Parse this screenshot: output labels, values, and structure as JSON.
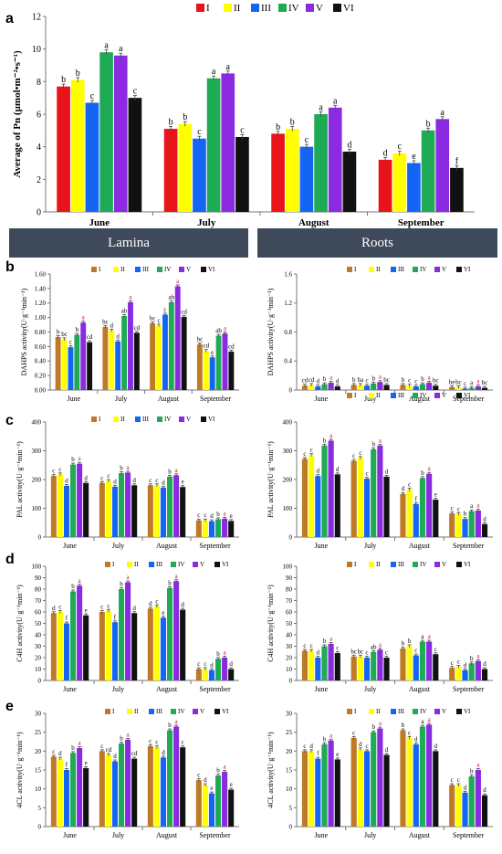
{
  "panel_letters": [
    "a",
    "b",
    "c",
    "d",
    "e"
  ],
  "banner": {
    "left_label": "Lamina",
    "right_label": "Roots"
  },
  "chart_data": [
    {
      "id": "pn",
      "type": "bar",
      "ylabel": "Average of Pn (µmol•m⁻²•s⁻¹)",
      "ylim": [
        0,
        12
      ],
      "yticks": [
        0,
        2,
        4,
        6,
        8,
        10,
        12
      ],
      "categories": [
        "June",
        "July",
        "August",
        "September"
      ],
      "legend": [
        "I",
        "II",
        "III",
        "IV",
        "V",
        "VI"
      ],
      "colors": [
        "#e8141c",
        "#ffff00",
        "#1565f5",
        "#1faa55",
        "#8a2be2",
        "#111111"
      ],
      "series": [
        {
          "name": "I",
          "values": [
            7.7,
            5.1,
            4.8,
            3.2
          ]
        },
        {
          "name": "II",
          "values": [
            8.1,
            5.4,
            5.1,
            3.6
          ]
        },
        {
          "name": "III",
          "values": [
            6.7,
            4.5,
            4.0,
            3.0
          ]
        },
        {
          "name": "IV",
          "values": [
            9.8,
            8.2,
            6.0,
            5.0
          ]
        },
        {
          "name": "V",
          "values": [
            9.6,
            8.5,
            6.4,
            5.7
          ]
        },
        {
          "name": "VI",
          "values": [
            7.0,
            4.6,
            3.7,
            2.7
          ]
        }
      ],
      "letters": [
        [
          "b",
          "b",
          "c",
          "a",
          "a",
          "c"
        ],
        [
          "b",
          "b",
          "c",
          "a",
          "a",
          "c"
        ],
        [
          "b",
          "b",
          "c",
          "a",
          "a",
          "d"
        ],
        [
          "d",
          "c",
          "e",
          "b",
          "a",
          "f"
        ]
      ]
    },
    {
      "id": "dahps_lamina",
      "type": "bar",
      "ylabel": "DAHPS activity(U·g⁻¹min⁻¹)",
      "ylim": [
        0,
        1.6
      ],
      "yticks": [
        0,
        0.2,
        0.4,
        0.6,
        0.8,
        1.0,
        1.2,
        1.4,
        1.6
      ],
      "ytick_labels": [
        "0.00",
        "0.20",
        "0.40",
        "0.60",
        "0.80",
        "1.00",
        "1.20",
        "1.40",
        "1.60"
      ],
      "categories": [
        "June",
        "July",
        "August",
        "September"
      ],
      "legend": [
        "I",
        "II",
        "III",
        "IV",
        "V",
        "VI"
      ],
      "colors": [
        "#c07a26",
        "#ffff00",
        "#1565f5",
        "#1faa55",
        "#8a2be2",
        "#111111"
      ],
      "series": [
        {
          "name": "I",
          "values": [
            0.73,
            0.87,
            0.92,
            0.63
          ]
        },
        {
          "name": "II",
          "values": [
            0.7,
            0.82,
            0.89,
            0.54
          ]
        },
        {
          "name": "III",
          "values": [
            0.59,
            0.67,
            1.04,
            0.45
          ]
        },
        {
          "name": "IV",
          "values": [
            0.76,
            1.02,
            1.21,
            0.75
          ]
        },
        {
          "name": "V",
          "values": [
            0.93,
            1.21,
            1.43,
            0.78
          ]
        },
        {
          "name": "VI",
          "values": [
            0.66,
            0.79,
            1.01,
            0.53
          ]
        }
      ],
      "letters": [
        [
          "b",
          "bc",
          "c",
          "b",
          "a",
          "cd"
        ],
        [
          "bc",
          "d",
          "d",
          "ab",
          "a",
          "cd"
        ],
        [
          "bc",
          "c",
          "c",
          "ab",
          "a",
          "cd"
        ],
        [
          "bc",
          "cd",
          "e",
          "ab",
          "a",
          "cd"
        ]
      ]
    },
    {
      "id": "dahps_roots",
      "type": "bar",
      "ylabel": "DAHPS activity(U·g⁻¹min⁻¹)",
      "ylim": [
        0,
        1.6
      ],
      "yticks": [
        0,
        0.4,
        0.8,
        1.2,
        1.6
      ],
      "ytick_labels": [
        "0",
        "0.4",
        "0.8",
        "1.2",
        "1.6"
      ],
      "categories": [
        "June",
        "July",
        "August",
        "September"
      ],
      "legend": [
        "I",
        "II",
        "III",
        "IV",
        "V",
        "VI"
      ],
      "colors": [
        "#c07a26",
        "#ffff00",
        "#1565f5",
        "#1faa55",
        "#8a2be2",
        "#111111"
      ],
      "series": [
        {
          "name": "I",
          "values": [
            0.06,
            0.07,
            0.07,
            0.04
          ]
        },
        {
          "name": "II",
          "values": [
            0.07,
            0.07,
            0.06,
            0.04
          ]
        },
        {
          "name": "III",
          "values": [
            0.05,
            0.06,
            0.05,
            0.02
          ]
        },
        {
          "name": "IV",
          "values": [
            0.08,
            0.09,
            0.08,
            0.03
          ]
        },
        {
          "name": "V",
          "values": [
            0.1,
            0.11,
            0.1,
            0.05
          ]
        },
        {
          "name": "VI",
          "values": [
            0.05,
            0.07,
            0.06,
            0.03
          ]
        }
      ],
      "letters": [
        [
          "cd",
          "cd",
          "d",
          "b",
          "a",
          "d"
        ],
        [
          "b",
          "ba",
          "c",
          "b",
          "a",
          "bc"
        ],
        [
          "b",
          "c",
          "c",
          "b",
          "a",
          "bc"
        ],
        [
          "be",
          "bc",
          "c",
          "a",
          "a",
          "bc"
        ]
      ]
    },
    {
      "id": "pal_lamina",
      "type": "bar",
      "ylabel": "PAL activity(U·g⁻¹min⁻¹)",
      "ylim": [
        0,
        400
      ],
      "yticks": [
        0,
        100,
        200,
        300,
        400
      ],
      "categories": [
        "June",
        "July",
        "August",
        "September"
      ],
      "legend": [
        "I",
        "II",
        "III",
        "IV",
        "V",
        "VI"
      ],
      "colors": [
        "#c07a26",
        "#ffff00",
        "#1565f5",
        "#1faa55",
        "#8a2be2",
        "#111111"
      ],
      "series": [
        {
          "name": "I",
          "values": [
            212,
            188,
            180,
            58
          ]
        },
        {
          "name": "II",
          "values": [
            218,
            195,
            180,
            58
          ]
        },
        {
          "name": "III",
          "values": [
            178,
            175,
            172,
            55
          ]
        },
        {
          "name": "IV",
          "values": [
            252,
            222,
            210,
            62
          ]
        },
        {
          "name": "V",
          "values": [
            255,
            224,
            215,
            64
          ]
        },
        {
          "name": "VI",
          "values": [
            188,
            180,
            174,
            56
          ]
        }
      ],
      "letters": [
        [
          "c",
          "c",
          "d",
          "b",
          "a",
          "d"
        ],
        [
          "c",
          "c",
          "d",
          "b",
          "a",
          "d"
        ],
        [
          "c",
          "c",
          "d",
          "b",
          "a",
          "e"
        ],
        [
          "c",
          "c",
          "d",
          "b",
          "a",
          "e"
        ]
      ]
    },
    {
      "id": "pal_roots",
      "type": "bar",
      "ylabel": "PAL activity(U·g⁻¹min⁻¹)",
      "ylim": [
        0,
        400
      ],
      "yticks": [
        0,
        100,
        200,
        300,
        400
      ],
      "categories": [
        "June",
        "July",
        "August",
        "September"
      ],
      "legend": [
        "I",
        "II",
        "III",
        "IV",
        "V",
        "VI"
      ],
      "colors": [
        "#c07a26",
        "#ffff00",
        "#1565f5",
        "#1faa55",
        "#8a2be2",
        "#111111"
      ],
      "series": [
        {
          "name": "I",
          "values": [
            272,
            265,
            150,
            82
          ]
        },
        {
          "name": "II",
          "values": [
            285,
            275,
            165,
            80
          ]
        },
        {
          "name": "III",
          "values": [
            212,
            203,
            115,
            63
          ]
        },
        {
          "name": "IV",
          "values": [
            318,
            305,
            205,
            90
          ]
        },
        {
          "name": "V",
          "values": [
            335,
            318,
            220,
            92
          ]
        },
        {
          "name": "VI",
          "values": [
            218,
            210,
            130,
            45
          ]
        }
      ],
      "letters": [
        [
          "c",
          "c",
          "d",
          "b",
          "a",
          "d"
        ],
        [
          "c",
          "c",
          "c",
          "b",
          "a",
          "d"
        ],
        [
          "d",
          "c",
          "f",
          "b",
          "a",
          "e"
        ],
        [
          "c",
          "c",
          "b",
          "a",
          "a",
          "d"
        ]
      ]
    },
    {
      "id": "c4h_lamina",
      "type": "bar",
      "ylabel": "C4H activity(U·g⁻¹min⁻¹)",
      "ylim": [
        0,
        100
      ],
      "yticks": [
        0,
        10,
        20,
        30,
        40,
        50,
        60,
        70,
        80,
        90,
        100
      ],
      "categories": [
        "June",
        "July",
        "August",
        "September"
      ],
      "legend": [
        "I",
        "II",
        "III",
        "IV",
        "V",
        "VI"
      ],
      "colors": [
        "#c07a26",
        "#ffff00",
        "#1565f5",
        "#1faa55",
        "#8a2be2",
        "#111111"
      ],
      "series": [
        {
          "name": "I",
          "values": [
            59,
            60,
            63,
            10
          ]
        },
        {
          "name": "II",
          "values": [
            60,
            61,
            65,
            10
          ]
        },
        {
          "name": "III",
          "values": [
            50,
            51,
            55,
            9
          ]
        },
        {
          "name": "IV",
          "values": [
            78,
            80,
            81,
            19
          ]
        },
        {
          "name": "V",
          "values": [
            83,
            86,
            87,
            20
          ]
        },
        {
          "name": "VI",
          "values": [
            57,
            59,
            62,
            10
          ]
        }
      ],
      "letters": [
        [
          "d",
          "c",
          "f",
          "b",
          "a",
          "e"
        ],
        [
          "c",
          "c",
          "f",
          "b",
          "a",
          "d"
        ],
        [
          "d",
          "c",
          "e",
          "b",
          "a",
          "d"
        ],
        [
          "c",
          "c",
          "d",
          "b",
          "a",
          "d"
        ]
      ]
    },
    {
      "id": "c4h_roots",
      "type": "bar",
      "ylabel": "C4H activity(U·g⁻¹min⁻¹)",
      "ylim": [
        0,
        100
      ],
      "yticks": [
        0,
        10,
        20,
        30,
        40,
        50,
        60,
        70,
        80,
        90,
        100
      ],
      "categories": [
        "June",
        "July",
        "August",
        "September"
      ],
      "legend": [
        "I",
        "II",
        "III",
        "IV",
        "V",
        "VI"
      ],
      "colors": [
        "#c07a26",
        "#ffff00",
        "#1565f5",
        "#1faa55",
        "#8a2be2",
        "#111111"
      ],
      "series": [
        {
          "name": "I",
          "values": [
            26,
            21,
            28,
            11
          ]
        },
        {
          "name": "II",
          "values": [
            26,
            21,
            30,
            12
          ]
        },
        {
          "name": "III",
          "values": [
            20,
            20,
            22,
            9
          ]
        },
        {
          "name": "IV",
          "values": [
            30,
            25,
            34,
            15
          ]
        },
        {
          "name": "V",
          "values": [
            32,
            27,
            34,
            17
          ]
        },
        {
          "name": "VI",
          "values": [
            24,
            20,
            23,
            10
          ]
        }
      ],
      "letters": [
        [
          "c",
          "c",
          "d",
          "b",
          "a",
          "c"
        ],
        [
          "bc",
          "bc",
          "c",
          "ab",
          "a",
          "c"
        ],
        [
          "b",
          "b",
          "c",
          "a",
          "a",
          "c"
        ],
        [
          "c",
          "c",
          "d",
          "b",
          "a",
          "d"
        ]
      ]
    },
    {
      "id": "4cl_lamina",
      "type": "bar",
      "ylabel": "4CL activity(U·g⁻¹min⁻¹)",
      "ylim": [
        0,
        30
      ],
      "yticks": [
        0,
        5,
        10,
        15,
        20,
        25,
        30
      ],
      "categories": [
        "June",
        "July",
        "August",
        "September"
      ],
      "legend": [
        "I",
        "II",
        "III",
        "IV",
        "V",
        "VI"
      ],
      "colors": [
        "#c07a26",
        "#ffff00",
        "#1565f5",
        "#1faa55",
        "#8a2be2",
        "#111111"
      ],
      "series": [
        {
          "name": "I",
          "values": [
            18.5,
            20.0,
            21.3,
            12.3
          ]
        },
        {
          "name": "II",
          "values": [
            18.0,
            19.0,
            21.0,
            11.0
          ]
        },
        {
          "name": "III",
          "values": [
            15.0,
            17.3,
            18.3,
            8.8
          ]
        },
        {
          "name": "IV",
          "values": [
            19.5,
            22.0,
            25.5,
            13.5
          ]
        },
        {
          "name": "V",
          "values": [
            20.8,
            23.0,
            26.5,
            14.5
          ]
        },
        {
          "name": "VI",
          "values": [
            15.5,
            18.0,
            21.0,
            9.8
          ]
        }
      ],
      "letters": [
        [
          "c",
          "d",
          "f",
          "b",
          "a",
          "e"
        ],
        [
          "c",
          "cd",
          "d",
          "b",
          "a",
          "cd"
        ],
        [
          "c",
          "c",
          "d",
          "b",
          "a",
          "c"
        ],
        [
          "c",
          "d",
          "e",
          "b",
          "a",
          "e"
        ]
      ]
    },
    {
      "id": "4cl_roots",
      "type": "bar",
      "ylabel": "4CL activity(U·g⁻¹min⁻¹)",
      "ylim": [
        0,
        30
      ],
      "yticks": [
        0,
        5,
        10,
        15,
        20,
        25,
        30
      ],
      "categories": [
        "June",
        "July",
        "August",
        "September"
      ],
      "legend": [
        "I",
        "II",
        "III",
        "IV",
        "V",
        "VI"
      ],
      "colors": [
        "#c07a26",
        "#ffff00",
        "#1565f5",
        "#1faa55",
        "#8a2be2",
        "#111111"
      ],
      "series": [
        {
          "name": "I",
          "values": [
            20.0,
            23.5,
            25.5,
            11.0
          ]
        },
        {
          "name": "II",
          "values": [
            20.0,
            20.5,
            23.5,
            11.0
          ]
        },
        {
          "name": "III",
          "values": [
            18.0,
            20.0,
            21.8,
            9.0
          ]
        },
        {
          "name": "IV",
          "values": [
            21.8,
            25.0,
            26.5,
            13.3
          ]
        },
        {
          "name": "V",
          "values": [
            22.8,
            26.0,
            27.0,
            15.0
          ]
        },
        {
          "name": "VI",
          "values": [
            17.8,
            19.0,
            20.0,
            8.3
          ]
        }
      ],
      "letters": [
        [
          "c",
          "d",
          "f",
          "b",
          "a",
          "e"
        ],
        [
          "c",
          "d",
          "c",
          "b",
          "a",
          "d"
        ],
        [
          "b",
          "c",
          "d",
          "a",
          "a",
          "d"
        ],
        [
          "c",
          "c",
          "d",
          "b",
          "a",
          "d"
        ]
      ]
    }
  ]
}
